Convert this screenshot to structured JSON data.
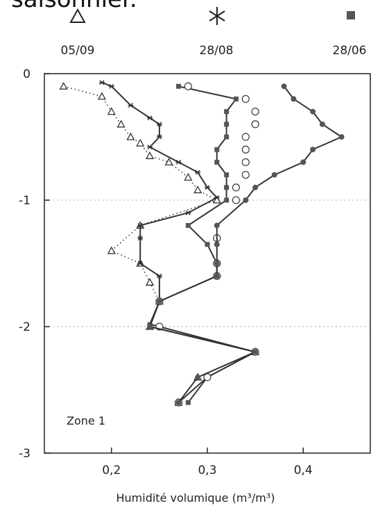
{
  "page_title_fragment": "saisonnier.",
  "legend": [
    {
      "label": "05/09",
      "marker": "triangle-open",
      "icon": "triangle-icon"
    },
    {
      "label": "28/08",
      "marker": "asterisk",
      "icon": "asterisk-icon"
    },
    {
      "label": "28/06",
      "marker": "square-filled",
      "icon": "square-icon"
    }
  ],
  "chart_data": {
    "type": "line",
    "title": "",
    "xlabel": "Humidité volumique (m³/m³)",
    "ylabel": "",
    "xlim": [
      0.13,
      0.47
    ],
    "ylim": [
      -3,
      0
    ],
    "xticks": [
      0.2,
      0.3,
      0.4
    ],
    "xtick_labels": [
      "0,2",
      "0,3",
      "0,4"
    ],
    "yticks": [
      0,
      -1,
      -2,
      -3
    ],
    "ytick_labels": [
      "0",
      "-1",
      "-2",
      "-3"
    ],
    "grid": "dotted horizontal at -1 and -2",
    "annotation": "Zone 1",
    "series": [
      {
        "marker": "triangle-open",
        "line": "dotted",
        "points": [
          [
            0.15,
            -0.1
          ],
          [
            0.19,
            -0.18
          ],
          [
            0.2,
            -0.3
          ],
          [
            0.21,
            -0.4
          ],
          [
            0.22,
            -0.5
          ],
          [
            0.23,
            -0.55
          ],
          [
            0.24,
            -0.65
          ],
          [
            0.26,
            -0.7
          ],
          [
            0.28,
            -0.82
          ],
          [
            0.29,
            -0.92
          ],
          [
            0.31,
            -1.0
          ],
          [
            0.23,
            -1.2
          ],
          [
            0.2,
            -1.4
          ],
          [
            0.23,
            -1.5
          ],
          [
            0.24,
            -1.65
          ],
          [
            0.25,
            -1.8
          ],
          [
            0.24,
            -2.0
          ],
          [
            0.35,
            -2.2
          ],
          [
            0.29,
            -2.4
          ],
          [
            0.27,
            -2.6
          ]
        ]
      },
      {
        "marker": "asterisk",
        "line": "solid",
        "points": [
          [
            0.19,
            -0.07
          ],
          [
            0.2,
            -0.1
          ],
          [
            0.22,
            -0.25
          ],
          [
            0.24,
            -0.35
          ],
          [
            0.25,
            -0.4
          ],
          [
            0.25,
            -0.5
          ],
          [
            0.24,
            -0.58
          ],
          [
            0.27,
            -0.7
          ],
          [
            0.29,
            -0.78
          ],
          [
            0.3,
            -0.9
          ],
          [
            0.31,
            -0.98
          ],
          [
            0.28,
            -1.1
          ],
          [
            0.23,
            -1.2
          ],
          [
            0.23,
            -1.3
          ],
          [
            0.23,
            -1.5
          ],
          [
            0.25,
            -1.6
          ],
          [
            0.25,
            -1.8
          ],
          [
            0.24,
            -1.98
          ],
          [
            0.35,
            -2.2
          ],
          [
            0.3,
            -2.4
          ],
          [
            0.27,
            -2.6
          ]
        ]
      },
      {
        "marker": "square-filled",
        "line": "solid",
        "points": [
          [
            0.27,
            -0.1
          ],
          [
            0.33,
            -0.2
          ],
          [
            0.32,
            -0.3
          ],
          [
            0.32,
            -0.4
          ],
          [
            0.32,
            -0.5
          ],
          [
            0.31,
            -0.6
          ],
          [
            0.31,
            -0.7
          ],
          [
            0.32,
            -0.8
          ],
          [
            0.32,
            -0.9
          ],
          [
            0.32,
            -1.0
          ],
          [
            0.28,
            -1.2
          ],
          [
            0.3,
            -1.35
          ],
          [
            0.31,
            -1.5
          ],
          [
            0.31,
            -1.6
          ],
          [
            0.25,
            -1.8
          ],
          [
            0.24,
            -2.0
          ],
          [
            0.35,
            -2.2
          ],
          [
            0.3,
            -2.4
          ],
          [
            0.28,
            -2.6
          ]
        ]
      },
      {
        "marker": "circle-open",
        "line": "none",
        "points": [
          [
            0.28,
            -0.1
          ],
          [
            0.34,
            -0.2
          ],
          [
            0.35,
            -0.3
          ],
          [
            0.35,
            -0.4
          ],
          [
            0.34,
            -0.5
          ],
          [
            0.34,
            -0.6
          ],
          [
            0.34,
            -0.7
          ],
          [
            0.34,
            -0.8
          ],
          [
            0.33,
            -0.9
          ],
          [
            0.33,
            -1.0
          ],
          [
            0.31,
            -1.3
          ],
          [
            0.31,
            -1.5
          ],
          [
            0.31,
            -1.6
          ],
          [
            0.25,
            -1.8
          ],
          [
            0.25,
            -2.0
          ],
          [
            0.35,
            -2.2
          ],
          [
            0.3,
            -2.4
          ],
          [
            0.27,
            -2.6
          ]
        ]
      },
      {
        "marker": "circle-filled",
        "line": "solid",
        "points": [
          [
            0.38,
            -0.1
          ],
          [
            0.39,
            -0.2
          ],
          [
            0.41,
            -0.3
          ],
          [
            0.42,
            -0.4
          ],
          [
            0.44,
            -0.5
          ],
          [
            0.41,
            -0.6
          ],
          [
            0.4,
            -0.7
          ],
          [
            0.37,
            -0.8
          ],
          [
            0.35,
            -0.9
          ],
          [
            0.34,
            -1.0
          ],
          [
            0.31,
            -1.2
          ],
          [
            0.31,
            -1.35
          ],
          [
            0.31,
            -1.5
          ],
          [
            0.31,
            -1.6
          ],
          [
            0.25,
            -1.8
          ],
          [
            0.24,
            -2.0
          ],
          [
            0.35,
            -2.2
          ],
          [
            0.29,
            -2.4
          ],
          [
            0.27,
            -2.6
          ]
        ]
      }
    ]
  }
}
